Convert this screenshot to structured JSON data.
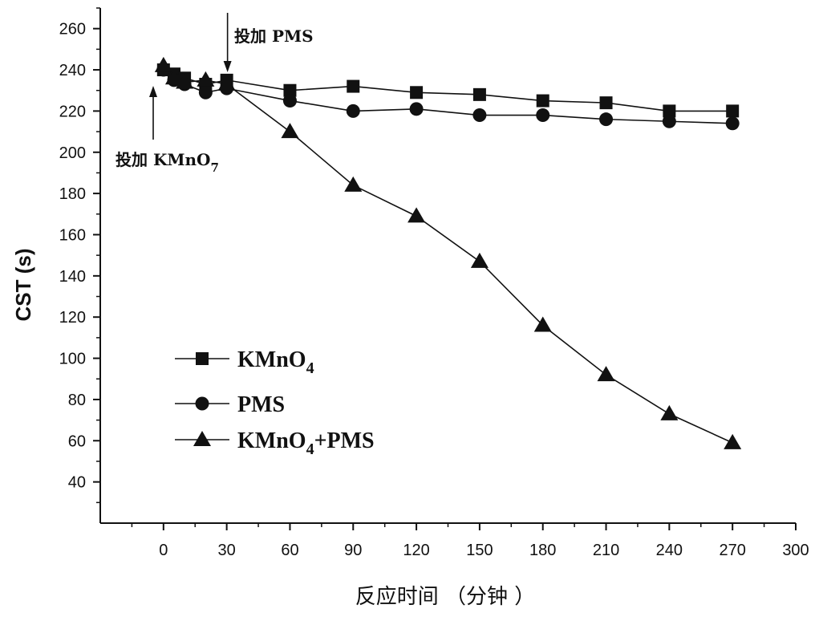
{
  "chart_data": {
    "type": "line",
    "title": "",
    "xlabel": "反应时间 （分钟 ）",
    "ylabel": "CST (s)",
    "xlim": [
      -30,
      300
    ],
    "ylim": [
      20,
      270
    ],
    "x_ticks": [
      0,
      30,
      60,
      90,
      120,
      150,
      180,
      210,
      240,
      270,
      300
    ],
    "y_ticks": [
      40,
      60,
      80,
      100,
      120,
      140,
      160,
      180,
      200,
      220,
      240,
      260
    ],
    "grid": false,
    "legend_position": "bottom-left",
    "series": [
      {
        "name": "KMnO4",
        "marker": "square",
        "x": [
          0,
          5,
          10,
          20,
          30,
          60,
          90,
          120,
          150,
          180,
          210,
          240,
          270
        ],
        "y": [
          240,
          238,
          236,
          233,
          235,
          230,
          232,
          229,
          228,
          225,
          224,
          220,
          220
        ]
      },
      {
        "name": "PMS",
        "marker": "circle",
        "x": [
          0,
          5,
          10,
          20,
          30,
          60,
          90,
          120,
          150,
          180,
          210,
          240,
          270
        ],
        "y": [
          240,
          235,
          233,
          229,
          231,
          225,
          220,
          221,
          218,
          218,
          216,
          215,
          214
        ]
      },
      {
        "name": "KMnO4+PMS",
        "marker": "triangle",
        "x": [
          0,
          5,
          10,
          20,
          30,
          60,
          90,
          120,
          150,
          180,
          210,
          240,
          270
        ],
        "y": [
          242,
          236,
          234,
          235,
          233,
          210,
          184,
          169,
          147,
          116,
          92,
          73,
          59
        ]
      }
    ],
    "annotations": [
      {
        "text": "投加  PMS",
        "x": 30,
        "arrow_to_y": 236
      },
      {
        "text": "投加  KMnO",
        "subscript": "7",
        "x": -2,
        "arrow_to_y": 234
      }
    ]
  }
}
